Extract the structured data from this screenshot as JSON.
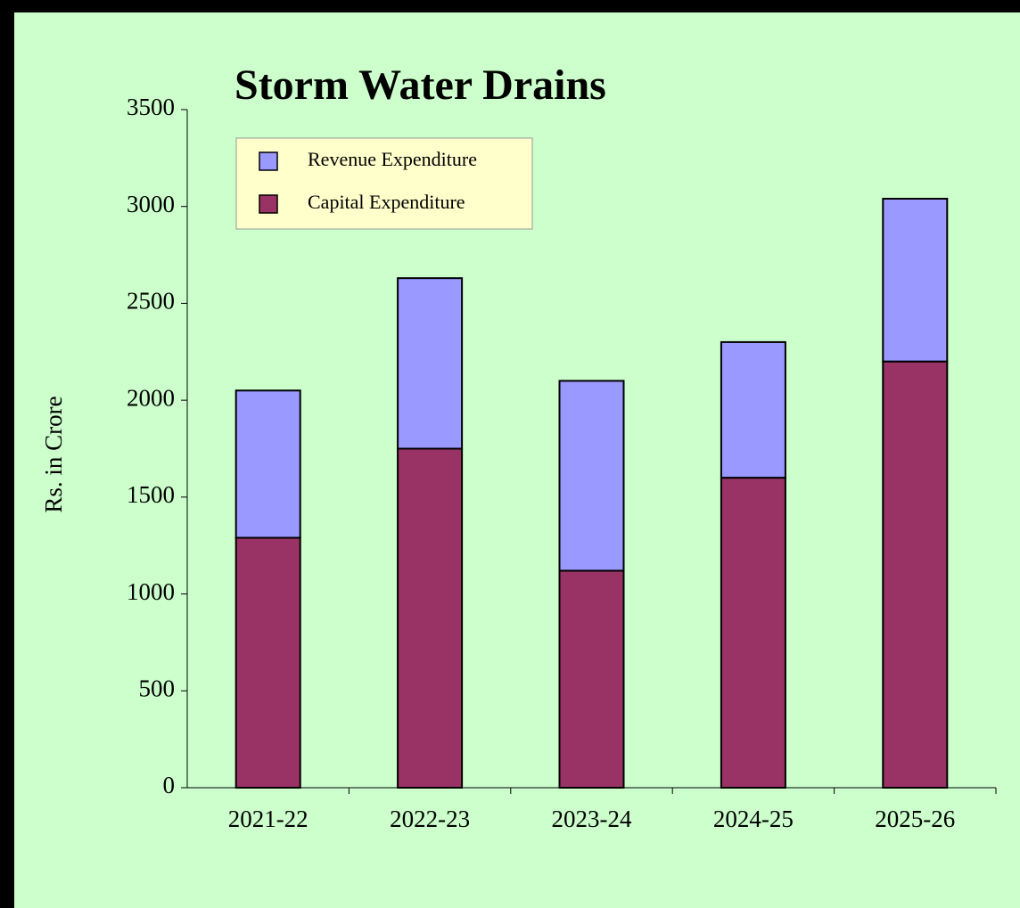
{
  "chart_data": {
    "type": "stacked_bar",
    "title": "Storm Water Drains",
    "y_label": "Rs. in Crore",
    "categories": [
      "2021-22",
      "2022-23",
      "2023-24",
      "2024-25",
      "2025-26"
    ],
    "series": [
      {
        "name": "Revenue Expenditure",
        "color": "#9999ff",
        "values": [
          760,
          880,
          980,
          700,
          840
        ]
      },
      {
        "name": "Capital Expenditure",
        "color": "#993366",
        "values": [
          1290,
          1750,
          1120,
          1600,
          2200
        ]
      }
    ],
    "ylim": [
      0,
      3500
    ],
    "yticks": [
      0,
      500,
      1000,
      1500,
      2000,
      2500,
      3000,
      3500
    ],
    "legend": "upper left",
    "stack_order": "last-at-bottom"
  }
}
